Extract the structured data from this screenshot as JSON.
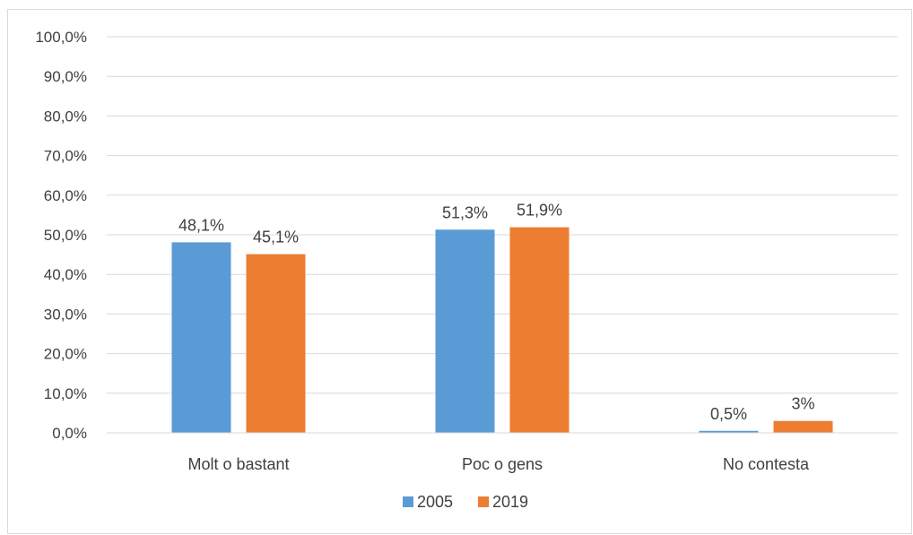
{
  "chart_data": {
    "type": "bar",
    "categories": [
      "Molt o bastant",
      "Poc o gens",
      "No contesta"
    ],
    "series": [
      {
        "name": "2005",
        "values": [
          48.1,
          51.3,
          0.5
        ],
        "labels": [
          "48,1%",
          "51,3%",
          "0,5%"
        ],
        "color": "#5b9bd5"
      },
      {
        "name": "2019",
        "values": [
          45.1,
          51.9,
          3
        ],
        "labels": [
          "45,1%",
          "51,9%",
          "3%"
        ],
        "color": "#ed7d31"
      }
    ],
    "yticks": [
      "0,0%",
      "10,0%",
      "20,0%",
      "30,0%",
      "40,0%",
      "50,0%",
      "60,0%",
      "70,0%",
      "80,0%",
      "90,0%",
      "100,0%"
    ],
    "ylim": [
      0,
      100
    ],
    "grid": true,
    "legend_position": "bottom",
    "title": "",
    "xlabel": "",
    "ylabel": ""
  }
}
